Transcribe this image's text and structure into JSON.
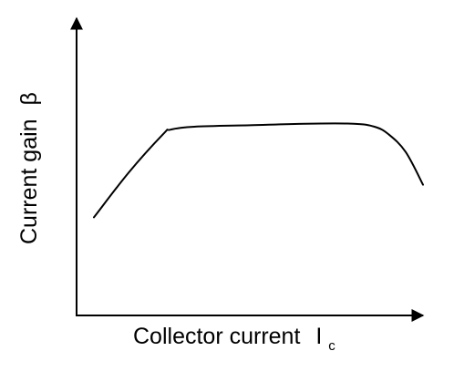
{
  "chart_data": {
    "type": "line",
    "title": "",
    "xlabel": "Collector current",
    "xlabel_symbol": "I",
    "xlabel_subscript": "c",
    "ylabel": "Current gain",
    "ylabel_symbol": "β",
    "x_ticks": false,
    "y_ticks": false,
    "grid": false,
    "xlim": [
      0,
      100
    ],
    "ylim": [
      0,
      100
    ],
    "series": [
      {
        "x": [
          5,
          15,
          25,
          27,
          34,
          50,
          66,
          80,
          86,
          90,
          95,
          100
        ],
        "y": [
          33,
          48,
          61,
          62.5,
          63.5,
          64,
          64.5,
          64.5,
          63.5,
          61,
          55,
          44
        ]
      }
    ],
    "colors": {
      "curve": "#000000",
      "axes": "#000000"
    }
  }
}
